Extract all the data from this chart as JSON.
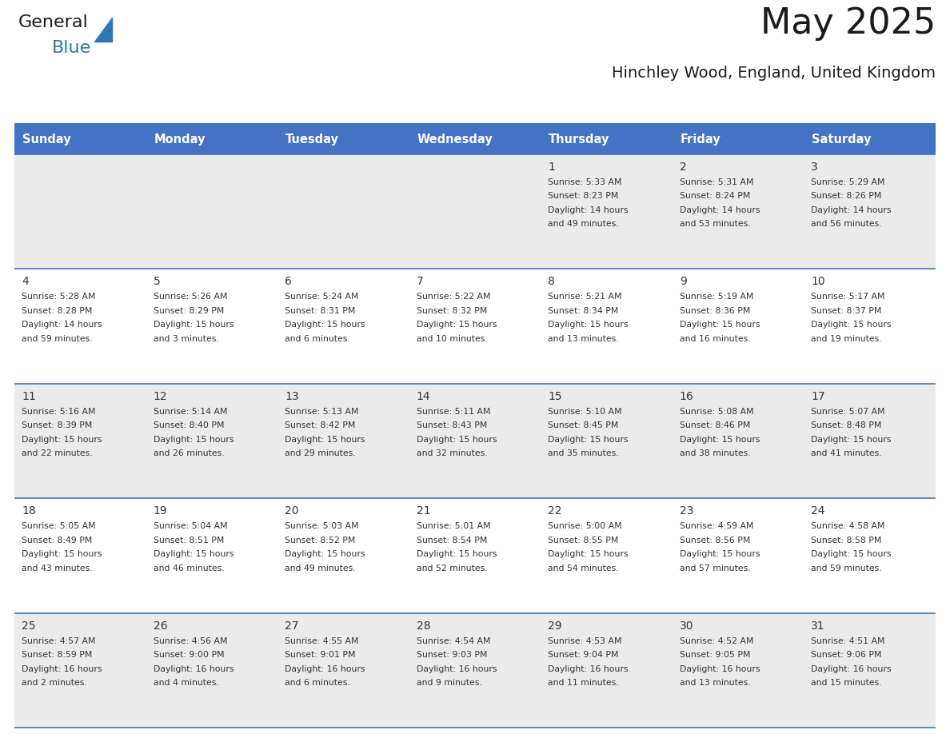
{
  "title": "May 2025",
  "subtitle": "Hinchley Wood, England, United Kingdom",
  "days_of_week": [
    "Sunday",
    "Monday",
    "Tuesday",
    "Wednesday",
    "Thursday",
    "Friday",
    "Saturday"
  ],
  "header_bg": "#4472C4",
  "header_text": "#FFFFFF",
  "cell_bg_even": "#EBEBEB",
  "cell_bg_odd": "#FFFFFF",
  "cell_border": "#4472C4",
  "day_number_color": "#333333",
  "cell_text_color": "#333333",
  "title_color": "#1a1a1a",
  "subtitle_color": "#1a1a1a",
  "logo_general_color": "#1a1a1a",
  "logo_blue_color": "#2E75B6",
  "logo_triangle_color": "#2E75B6",
  "weeks": [
    {
      "days": [
        {
          "date": null,
          "info": null
        },
        {
          "date": null,
          "info": null
        },
        {
          "date": null,
          "info": null
        },
        {
          "date": null,
          "info": null
        },
        {
          "date": 1,
          "info": "Sunrise: 5:33 AM\nSunset: 8:23 PM\nDaylight: 14 hours\nand 49 minutes."
        },
        {
          "date": 2,
          "info": "Sunrise: 5:31 AM\nSunset: 8:24 PM\nDaylight: 14 hours\nand 53 minutes."
        },
        {
          "date": 3,
          "info": "Sunrise: 5:29 AM\nSunset: 8:26 PM\nDaylight: 14 hours\nand 56 minutes."
        }
      ]
    },
    {
      "days": [
        {
          "date": 4,
          "info": "Sunrise: 5:28 AM\nSunset: 8:28 PM\nDaylight: 14 hours\nand 59 minutes."
        },
        {
          "date": 5,
          "info": "Sunrise: 5:26 AM\nSunset: 8:29 PM\nDaylight: 15 hours\nand 3 minutes."
        },
        {
          "date": 6,
          "info": "Sunrise: 5:24 AM\nSunset: 8:31 PM\nDaylight: 15 hours\nand 6 minutes."
        },
        {
          "date": 7,
          "info": "Sunrise: 5:22 AM\nSunset: 8:32 PM\nDaylight: 15 hours\nand 10 minutes."
        },
        {
          "date": 8,
          "info": "Sunrise: 5:21 AM\nSunset: 8:34 PM\nDaylight: 15 hours\nand 13 minutes."
        },
        {
          "date": 9,
          "info": "Sunrise: 5:19 AM\nSunset: 8:36 PM\nDaylight: 15 hours\nand 16 minutes."
        },
        {
          "date": 10,
          "info": "Sunrise: 5:17 AM\nSunset: 8:37 PM\nDaylight: 15 hours\nand 19 minutes."
        }
      ]
    },
    {
      "days": [
        {
          "date": 11,
          "info": "Sunrise: 5:16 AM\nSunset: 8:39 PM\nDaylight: 15 hours\nand 22 minutes."
        },
        {
          "date": 12,
          "info": "Sunrise: 5:14 AM\nSunset: 8:40 PM\nDaylight: 15 hours\nand 26 minutes."
        },
        {
          "date": 13,
          "info": "Sunrise: 5:13 AM\nSunset: 8:42 PM\nDaylight: 15 hours\nand 29 minutes."
        },
        {
          "date": 14,
          "info": "Sunrise: 5:11 AM\nSunset: 8:43 PM\nDaylight: 15 hours\nand 32 minutes."
        },
        {
          "date": 15,
          "info": "Sunrise: 5:10 AM\nSunset: 8:45 PM\nDaylight: 15 hours\nand 35 minutes."
        },
        {
          "date": 16,
          "info": "Sunrise: 5:08 AM\nSunset: 8:46 PM\nDaylight: 15 hours\nand 38 minutes."
        },
        {
          "date": 17,
          "info": "Sunrise: 5:07 AM\nSunset: 8:48 PM\nDaylight: 15 hours\nand 41 minutes."
        }
      ]
    },
    {
      "days": [
        {
          "date": 18,
          "info": "Sunrise: 5:05 AM\nSunset: 8:49 PM\nDaylight: 15 hours\nand 43 minutes."
        },
        {
          "date": 19,
          "info": "Sunrise: 5:04 AM\nSunset: 8:51 PM\nDaylight: 15 hours\nand 46 minutes."
        },
        {
          "date": 20,
          "info": "Sunrise: 5:03 AM\nSunset: 8:52 PM\nDaylight: 15 hours\nand 49 minutes."
        },
        {
          "date": 21,
          "info": "Sunrise: 5:01 AM\nSunset: 8:54 PM\nDaylight: 15 hours\nand 52 minutes."
        },
        {
          "date": 22,
          "info": "Sunrise: 5:00 AM\nSunset: 8:55 PM\nDaylight: 15 hours\nand 54 minutes."
        },
        {
          "date": 23,
          "info": "Sunrise: 4:59 AM\nSunset: 8:56 PM\nDaylight: 15 hours\nand 57 minutes."
        },
        {
          "date": 24,
          "info": "Sunrise: 4:58 AM\nSunset: 8:58 PM\nDaylight: 15 hours\nand 59 minutes."
        }
      ]
    },
    {
      "days": [
        {
          "date": 25,
          "info": "Sunrise: 4:57 AM\nSunset: 8:59 PM\nDaylight: 16 hours\nand 2 minutes."
        },
        {
          "date": 26,
          "info": "Sunrise: 4:56 AM\nSunset: 9:00 PM\nDaylight: 16 hours\nand 4 minutes."
        },
        {
          "date": 27,
          "info": "Sunrise: 4:55 AM\nSunset: 9:01 PM\nDaylight: 16 hours\nand 6 minutes."
        },
        {
          "date": 28,
          "info": "Sunrise: 4:54 AM\nSunset: 9:03 PM\nDaylight: 16 hours\nand 9 minutes."
        },
        {
          "date": 29,
          "info": "Sunrise: 4:53 AM\nSunset: 9:04 PM\nDaylight: 16 hours\nand 11 minutes."
        },
        {
          "date": 30,
          "info": "Sunrise: 4:52 AM\nSunset: 9:05 PM\nDaylight: 16 hours\nand 13 minutes."
        },
        {
          "date": 31,
          "info": "Sunrise: 4:51 AM\nSunset: 9:06 PM\nDaylight: 16 hours\nand 15 minutes."
        }
      ]
    }
  ]
}
